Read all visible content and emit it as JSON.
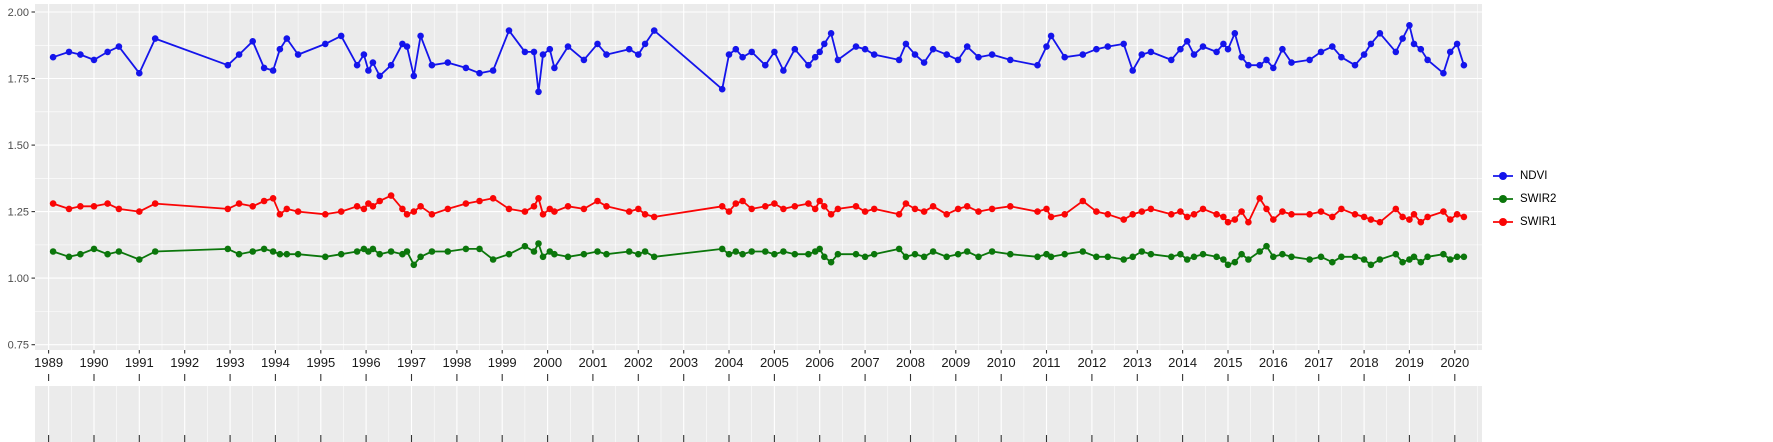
{
  "figure": {
    "panel_background": "#EBEBEB",
    "grid_color": "#FFFFFF",
    "axis_text_color": "#4D4D4D",
    "x_label_color": "#1A1A1A",
    "tick_color": "#333333",
    "background": "#FFFFFF"
  },
  "chart_data": {
    "type": "line",
    "title": "",
    "xlabel": "",
    "ylabel": "",
    "grid": true,
    "legend_position": "right",
    "x_domain": [
      1988.7,
      2020.6
    ],
    "y_domain": [
      0.73,
      2.03
    ],
    "y_ticks": {
      "values": [
        2.0,
        1.75,
        1.5,
        1.25,
        1.0,
        0.75
      ],
      "labels": [
        "2.00",
        "1.75",
        "1.50",
        "1.25",
        "1.00",
        "0.75"
      ]
    },
    "x_ticks": {
      "values": [
        1989,
        1990,
        1991,
        1992,
        1993,
        1994,
        1995,
        1996,
        1997,
        1998,
        1999,
        2000,
        2001,
        2002,
        2003,
        2004,
        2005,
        2006,
        2007,
        2008,
        2009,
        2010,
        2011,
        2012,
        2013,
        2014,
        2015,
        2016,
        2017,
        2018,
        2019,
        2020
      ],
      "labels": [
        "1989",
        "1990",
        "1991",
        "1992",
        "1993",
        "1994",
        "1995",
        "1996",
        "1997",
        "1998",
        "1999",
        "2000",
        "2001",
        "2002",
        "2003",
        "2004",
        "2005",
        "2006",
        "2007",
        "2008",
        "2009",
        "2010",
        "2011",
        "2012",
        "2013",
        "2014",
        "2015",
        "2016",
        "2017",
        "2018",
        "2019",
        "2020"
      ]
    },
    "x": [
      1989.1,
      1989.45,
      1989.7,
      1990.0,
      1990.3,
      1990.55,
      1991.0,
      1991.35,
      1992.95,
      1993.2,
      1993.5,
      1993.75,
      1993.95,
      1994.1,
      1994.25,
      1994.5,
      1995.1,
      1995.45,
      1995.8,
      1995.95,
      1996.05,
      1996.15,
      1996.3,
      1996.55,
      1996.8,
      1996.9,
      1997.05,
      1997.2,
      1997.45,
      1997.8,
      1998.2,
      1998.5,
      1998.8,
      1999.15,
      1999.5,
      1999.7,
      1999.8,
      1999.9,
      2000.05,
      2000.15,
      2000.45,
      2000.8,
      2001.1,
      2001.3,
      2001.8,
      2002.0,
      2002.15,
      2002.35,
      2003.85,
      2004.0,
      2004.15,
      2004.3,
      2004.5,
      2004.8,
      2005.0,
      2005.2,
      2005.45,
      2005.75,
      2005.9,
      2006.0,
      2006.1,
      2006.25,
      2006.4,
      2006.8,
      2007.0,
      2007.2,
      2007.75,
      2007.9,
      2008.1,
      2008.3,
      2008.5,
      2008.8,
      2009.05,
      2009.25,
      2009.5,
      2009.8,
      2010.2,
      2010.8,
      2011.0,
      2011.1,
      2011.4,
      2011.8,
      2012.1,
      2012.35,
      2012.7,
      2012.9,
      2013.1,
      2013.3,
      2013.75,
      2013.95,
      2014.1,
      2014.25,
      2014.45,
      2014.75,
      2014.9,
      2015.0,
      2015.15,
      2015.3,
      2015.45,
      2015.7,
      2015.85,
      2016.0,
      2016.2,
      2016.4,
      2016.8,
      2017.05,
      2017.3,
      2017.5,
      2017.8,
      2018.0,
      2018.15,
      2018.35,
      2018.7,
      2018.85,
      2019.0,
      2019.1,
      2019.25,
      2019.4,
      2019.75,
      2019.9,
      2020.05,
      2020.2
    ],
    "series": [
      {
        "name": "NDVI",
        "color": "#1414EB",
        "values": [
          1.83,
          1.85,
          1.84,
          1.82,
          1.85,
          1.87,
          1.77,
          1.9,
          1.8,
          1.84,
          1.89,
          1.79,
          1.78,
          1.86,
          1.9,
          1.84,
          1.88,
          1.91,
          1.8,
          1.84,
          1.78,
          1.81,
          1.76,
          1.8,
          1.88,
          1.87,
          1.76,
          1.91,
          1.8,
          1.81,
          1.79,
          1.77,
          1.78,
          1.93,
          1.85,
          1.85,
          1.7,
          1.84,
          1.86,
          1.79,
          1.87,
          1.82,
          1.88,
          1.84,
          1.86,
          1.84,
          1.88,
          1.93,
          1.71,
          1.84,
          1.86,
          1.83,
          1.85,
          1.8,
          1.85,
          1.78,
          1.86,
          1.8,
          1.83,
          1.85,
          1.88,
          1.92,
          1.82,
          1.87,
          1.86,
          1.84,
          1.82,
          1.88,
          1.84,
          1.81,
          1.86,
          1.84,
          1.82,
          1.87,
          1.83,
          1.84,
          1.82,
          1.8,
          1.87,
          1.91,
          1.83,
          1.84,
          1.86,
          1.87,
          1.88,
          1.78,
          1.84,
          1.85,
          1.82,
          1.86,
          1.89,
          1.84,
          1.87,
          1.85,
          1.88,
          1.86,
          1.92,
          1.83,
          1.8,
          1.8,
          1.82,
          1.79,
          1.86,
          1.81,
          1.82,
          1.85,
          1.87,
          1.83,
          1.8,
          1.84,
          1.88,
          1.92,
          1.85,
          1.9,
          1.95,
          1.88,
          1.86,
          1.82,
          1.77,
          1.85,
          1.88,
          1.8
        ]
      },
      {
        "name": "SWIR2",
        "color": "#0B760B",
        "values": [
          1.1,
          1.08,
          1.09,
          1.11,
          1.09,
          1.1,
          1.07,
          1.1,
          1.11,
          1.09,
          1.1,
          1.11,
          1.1,
          1.09,
          1.09,
          1.09,
          1.08,
          1.09,
          1.1,
          1.11,
          1.1,
          1.11,
          1.09,
          1.1,
          1.09,
          1.1,
          1.05,
          1.08,
          1.1,
          1.1,
          1.11,
          1.11,
          1.07,
          1.09,
          1.12,
          1.1,
          1.13,
          1.08,
          1.1,
          1.09,
          1.08,
          1.09,
          1.1,
          1.09,
          1.1,
          1.09,
          1.1,
          1.08,
          1.11,
          1.09,
          1.1,
          1.09,
          1.1,
          1.1,
          1.09,
          1.1,
          1.09,
          1.09,
          1.1,
          1.11,
          1.08,
          1.06,
          1.09,
          1.09,
          1.08,
          1.09,
          1.11,
          1.08,
          1.09,
          1.08,
          1.1,
          1.08,
          1.09,
          1.1,
          1.08,
          1.1,
          1.09,
          1.08,
          1.09,
          1.08,
          1.09,
          1.1,
          1.08,
          1.08,
          1.07,
          1.08,
          1.1,
          1.09,
          1.08,
          1.09,
          1.07,
          1.08,
          1.09,
          1.08,
          1.07,
          1.05,
          1.06,
          1.09,
          1.07,
          1.1,
          1.12,
          1.08,
          1.09,
          1.08,
          1.07,
          1.08,
          1.06,
          1.08,
          1.08,
          1.07,
          1.05,
          1.07,
          1.09,
          1.06,
          1.07,
          1.08,
          1.06,
          1.08,
          1.09,
          1.07,
          1.08,
          1.08
        ]
      },
      {
        "name": "SWIR1",
        "color": "#FA0505",
        "values": [
          1.28,
          1.26,
          1.27,
          1.27,
          1.28,
          1.26,
          1.25,
          1.28,
          1.26,
          1.28,
          1.27,
          1.29,
          1.3,
          1.24,
          1.26,
          1.25,
          1.24,
          1.25,
          1.27,
          1.26,
          1.28,
          1.27,
          1.29,
          1.31,
          1.26,
          1.24,
          1.25,
          1.27,
          1.24,
          1.26,
          1.28,
          1.29,
          1.3,
          1.26,
          1.25,
          1.27,
          1.3,
          1.24,
          1.26,
          1.25,
          1.27,
          1.26,
          1.29,
          1.27,
          1.25,
          1.26,
          1.24,
          1.23,
          1.27,
          1.25,
          1.28,
          1.29,
          1.26,
          1.27,
          1.28,
          1.26,
          1.27,
          1.28,
          1.26,
          1.29,
          1.27,
          1.24,
          1.26,
          1.27,
          1.25,
          1.26,
          1.24,
          1.28,
          1.26,
          1.25,
          1.27,
          1.24,
          1.26,
          1.27,
          1.25,
          1.26,
          1.27,
          1.25,
          1.26,
          1.23,
          1.24,
          1.29,
          1.25,
          1.24,
          1.22,
          1.24,
          1.25,
          1.26,
          1.24,
          1.25,
          1.23,
          1.24,
          1.26,
          1.24,
          1.23,
          1.21,
          1.22,
          1.25,
          1.21,
          1.3,
          1.26,
          1.22,
          1.25,
          1.24,
          1.24,
          1.25,
          1.23,
          1.26,
          1.24,
          1.23,
          1.22,
          1.21,
          1.26,
          1.23,
          1.22,
          1.24,
          1.21,
          1.23,
          1.25,
          1.22,
          1.24,
          1.23
        ]
      }
    ]
  }
}
